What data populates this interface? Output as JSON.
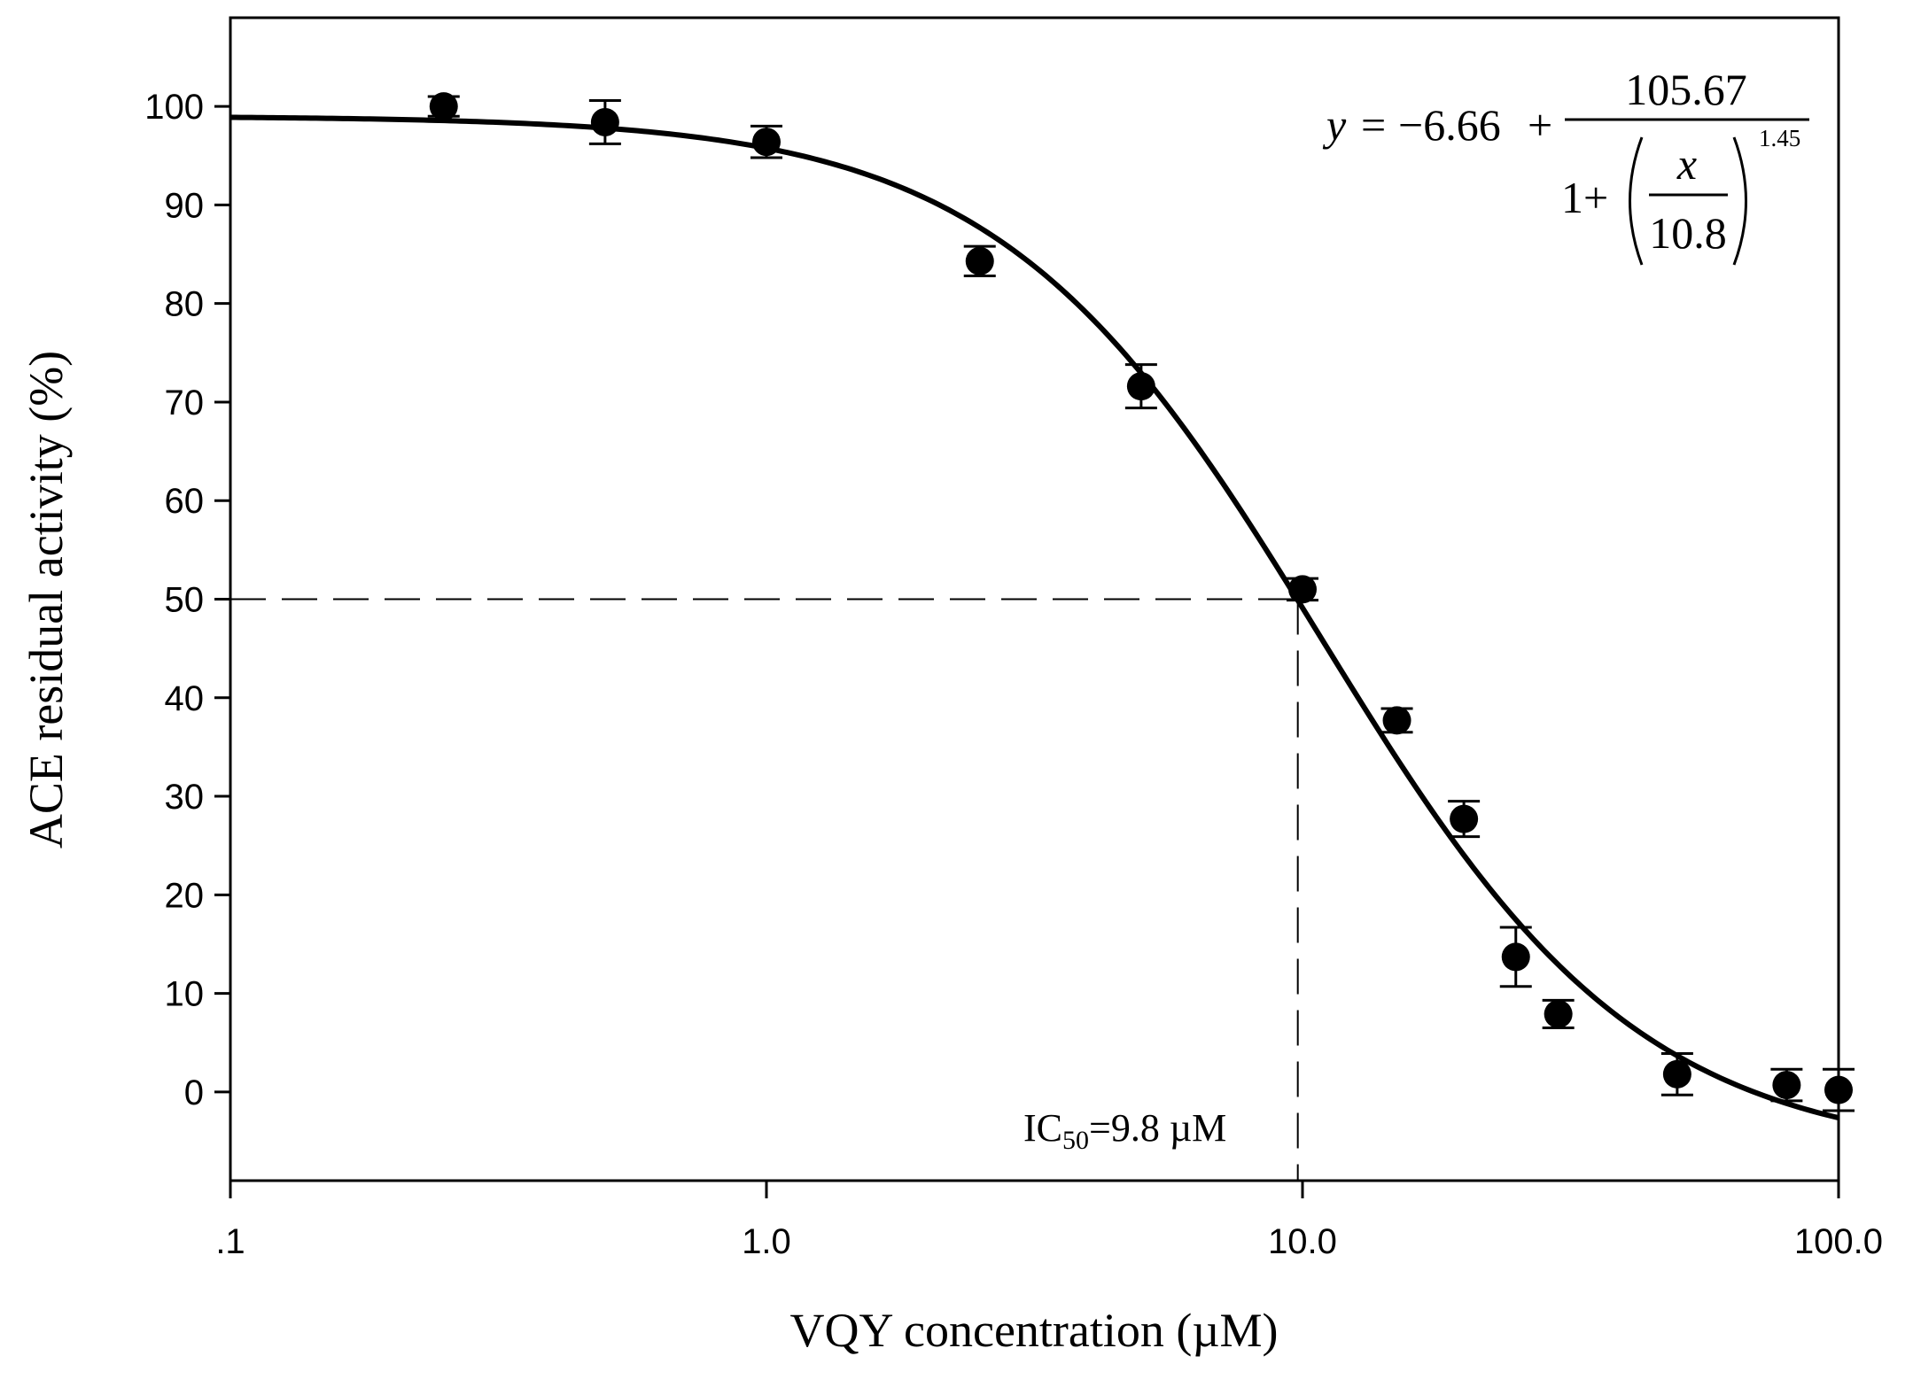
{
  "chart_data": {
    "type": "scatter",
    "x_scale": "log",
    "xlabel": "VQY concentration (µM)",
    "ylabel": "ACE residual activity (%)",
    "xlim": [
      0.1,
      100
    ],
    "ylim": [
      -9,
      109
    ],
    "x_ticks": [
      0.1,
      1,
      10,
      100
    ],
    "x_tick_labels": [
      ".1",
      "1.0",
      "10.0",
      "100.0"
    ],
    "y_ticks": [
      0,
      10,
      20,
      30,
      40,
      50,
      60,
      70,
      80,
      90,
      100
    ],
    "y_tick_labels": [
      "0",
      "10",
      "20",
      "30",
      "40",
      "50",
      "60",
      "70",
      "80",
      "90",
      "100"
    ],
    "series": [
      {
        "name": "VQY",
        "x": [
          0.25,
          0.5,
          1.0,
          2.5,
          5.0,
          10.0,
          15.0,
          20.0,
          25.0,
          30.0,
          50.0,
          80.0,
          100.0
        ],
        "y": [
          100.0,
          98.4,
          96.4,
          84.3,
          71.6,
          51.0,
          37.7,
          27.7,
          13.7,
          7.9,
          1.8,
          0.7,
          0.2
        ],
        "error": [
          1.0,
          2.2,
          1.6,
          1.5,
          2.2,
          1.1,
          1.2,
          1.8,
          3.0,
          1.4,
          2.1,
          1.6,
          2.1
        ]
      }
    ],
    "fit": {
      "type": "four-parameter logistic",
      "y0": -6.66,
      "a": 105.67,
      "x0": 10.8,
      "b": 1.45,
      "equation_parts": {
        "lhs": "y",
        "eq_sign": "=",
        "offset": "−6.66",
        "plus": "+",
        "numerator": "105.67",
        "one_plus": "1+",
        "x_var": "x",
        "x0_label": "10.8",
        "exponent": "1.45"
      }
    },
    "reference_lines": {
      "y": 50,
      "x": 9.8
    },
    "annotation": {
      "prefix": "IC",
      "subscript": "50",
      "value_text": "=9.8 µM"
    }
  }
}
